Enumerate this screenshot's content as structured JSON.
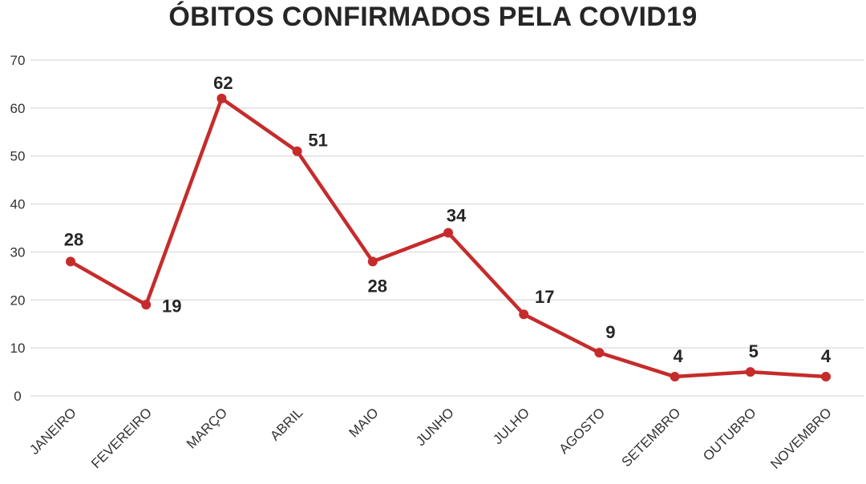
{
  "chart_data": {
    "type": "line",
    "title": "ÓBITOS CONFIRMADOS PELA COVID19",
    "xlabel": "",
    "ylabel": "",
    "categories": [
      "JANEIRO",
      "FEVEREIRO",
      "MARÇO",
      "ABRIL",
      "MAIO",
      "JUNHO",
      "JULHO",
      "AGOSTO",
      "SETEMBRO",
      "OUTUBRO",
      "NOVEMBRO"
    ],
    "series": [
      {
        "values": [
          28,
          19,
          62,
          51,
          28,
          34,
          17,
          9,
          4,
          5,
          4
        ]
      }
    ],
    "ylim": [
      0,
      70
    ],
    "yticks": [
      0,
      10,
      20,
      30,
      40,
      50,
      60,
      70
    ],
    "grid": true,
    "legend": "none",
    "colors": {
      "series": "#c62b2b"
    }
  }
}
